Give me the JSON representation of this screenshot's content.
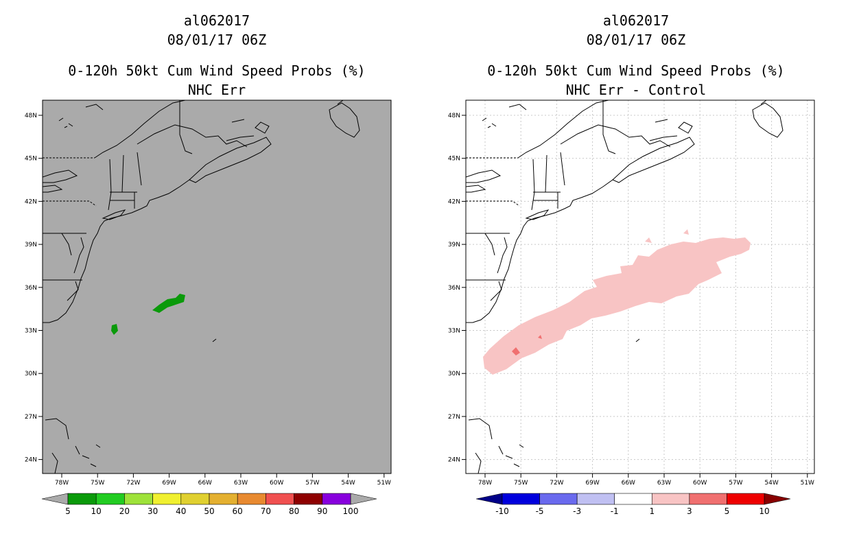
{
  "left_panel": {
    "storm_id": "al062017",
    "datetime": "08/01/17 06Z",
    "product": "0-120h 50kt Cum Wind Speed Probs (%)",
    "subtitle": "NHC Err",
    "background_color": "#aaaaaa",
    "colorbar_labels": [
      "5",
      "10",
      "20",
      "30",
      "40",
      "50",
      "60",
      "70",
      "80",
      "90",
      "100"
    ],
    "colorbar_colors": [
      "#0a9a0a",
      "#22cc22",
      "#9ee23a",
      "#f0f030",
      "#e0d030",
      "#e4b030",
      "#e88a30",
      "#f05050",
      "#8e0000",
      "#8800dd"
    ]
  },
  "right_panel": {
    "storm_id": "al062017",
    "datetime": "08/01/17 06Z",
    "product": "0-120h 50kt Cum Wind Speed Probs (%)",
    "subtitle": "NHC Err - Control",
    "background_color": "#ffffff",
    "colorbar_labels": [
      "-10",
      "-5",
      "-3",
      "-1",
      "1",
      "3",
      "5",
      "10"
    ],
    "colorbar_colors": [
      "#0000dd",
      "#6a6aee",
      "#c0c0f2",
      "#ffffff",
      "#f8c4c4",
      "#f07070",
      "#ee0000"
    ]
  },
  "lat_labels": [
    "48N",
    "45N",
    "42N",
    "39N",
    "36N",
    "33N",
    "30N",
    "27N",
    "24N"
  ],
  "lon_labels": [
    "78W",
    "75W",
    "72W",
    "69W",
    "66W",
    "63W",
    "60W",
    "57W",
    "54W",
    "51W"
  ]
}
